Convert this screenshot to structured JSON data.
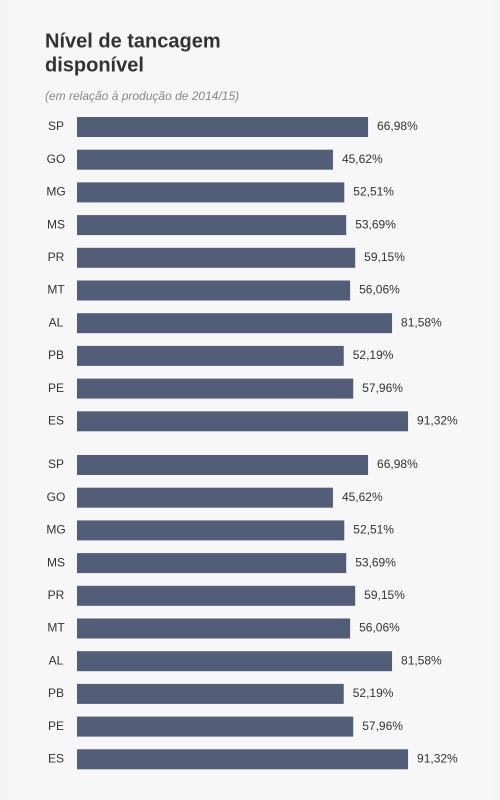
{
  "chart_data": [
    {
      "type": "bar",
      "orientation": "horizontal",
      "title": "Nível de tancagem disponível",
      "subtitle": "(em relação à produção de 2014/15)",
      "categories": [
        "SP",
        "GO",
        "MG",
        "MS",
        "PR",
        "MT",
        "AL",
        "PB",
        "PE",
        "ES"
      ],
      "values": [
        66.98,
        45.62,
        52.51,
        53.69,
        59.15,
        56.06,
        81.58,
        52.19,
        57.96,
        91.32
      ],
      "value_labels": [
        "66,98%",
        "45,62%",
        "52,51%",
        "53,69%",
        "59,15%",
        "56,06%",
        "81,58%",
        "52,19%",
        "57,96%",
        "91,32%"
      ],
      "color": "#525d78"
    },
    {
      "type": "bar",
      "orientation": "horizontal",
      "categories": [
        "SP",
        "GO",
        "MG",
        "MS",
        "PR",
        "MT",
        "AL",
        "PB",
        "PE",
        "ES"
      ],
      "values": [
        66.98,
        45.62,
        52.51,
        53.69,
        59.15,
        56.06,
        81.58,
        52.19,
        57.96,
        91.32
      ],
      "value_labels": [
        "66,98%",
        "45,62%",
        "52,51%",
        "53,69%",
        "59,15%",
        "56,06%",
        "81,58%",
        "52,19%",
        "57,96%",
        "91,32%"
      ],
      "color": "#525d78"
    }
  ]
}
